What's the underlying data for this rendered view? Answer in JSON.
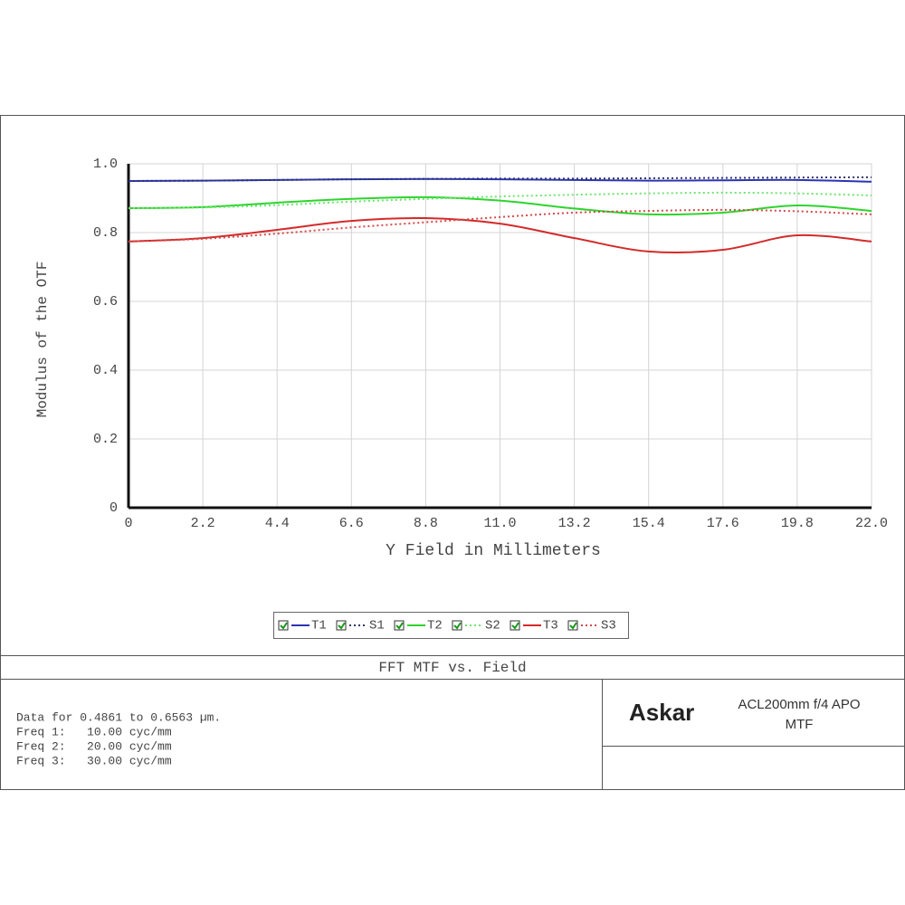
{
  "chart_data": {
    "type": "line",
    "xlabel": "Y Field in Millimeters",
    "ylabel": "Modulus of the OTF",
    "title": "FFT MTF vs. Field",
    "x": [
      0,
      2.2,
      4.4,
      6.6,
      8.8,
      11,
      13.2,
      15.4,
      17.6,
      19.8,
      22
    ],
    "xlim": [
      0,
      22
    ],
    "xticks": [
      0,
      2.2,
      4.4,
      6.6,
      8.8,
      {
        "value": 11,
        "label": "11.0"
      },
      13.2,
      15.4,
      17.6,
      19.8,
      {
        "value": 22,
        "label": "22.0"
      }
    ],
    "ylim": [
      0,
      1
    ],
    "yticks": [
      0,
      0.2,
      0.4,
      0.6,
      0.8,
      {
        "value": 1,
        "label": "1.0"
      }
    ],
    "grid": true,
    "legend": "bottom",
    "series": [
      {
        "name": "T1",
        "color": "#2a35b0",
        "dashed": false,
        "values": [
          0.95,
          0.951,
          0.953,
          0.955,
          0.956,
          0.955,
          0.953,
          0.951,
          0.952,
          0.953,
          0.948
        ]
      },
      {
        "name": "S1",
        "color": "#34346e",
        "dashed": true,
        "values": [
          0.95,
          0.951,
          0.953,
          0.955,
          0.956,
          0.957,
          0.957,
          0.958,
          0.959,
          0.96,
          0.961
        ]
      },
      {
        "name": "T2",
        "color": "#2ed42e",
        "dashed": false,
        "values": [
          0.871,
          0.874,
          0.887,
          0.898,
          0.903,
          0.893,
          0.87,
          0.853,
          0.858,
          0.879,
          0.863
        ]
      },
      {
        "name": "S2",
        "color": "#6fe46f",
        "dashed": true,
        "values": [
          0.871,
          0.873,
          0.88,
          0.89,
          0.898,
          0.905,
          0.91,
          0.914,
          0.916,
          0.914,
          0.908
        ]
      },
      {
        "name": "T3",
        "color": "#d42a2a",
        "dashed": false,
        "values": [
          0.774,
          0.784,
          0.808,
          0.834,
          0.842,
          0.826,
          0.784,
          0.745,
          0.75,
          0.792,
          0.774
        ]
      },
      {
        "name": "S3",
        "color": "#d44a4a",
        "dashed": true,
        "values": [
          0.774,
          0.782,
          0.797,
          0.815,
          0.83,
          0.845,
          0.858,
          0.863,
          0.866,
          0.862,
          0.853
        ]
      }
    ]
  },
  "report": {
    "notes": [
      "Data for 0.4861 to 0.6563 µm.",
      "Freq 1:   10.00 cyc/mm",
      "Freq 2:   20.00 cyc/mm",
      "Freq 3:   30.00 cyc/mm"
    ],
    "brand": "Askar",
    "product": "ACL200mm f/4 APO",
    "subtitle": "MTF"
  }
}
